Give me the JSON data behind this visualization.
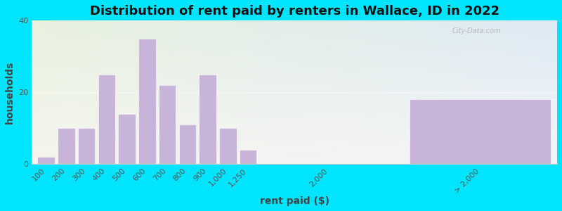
{
  "title": "Distribution of rent paid by renters in Wallace, ID in 2022",
  "xlabel": "rent paid ($)",
  "ylabel": "households",
  "bar_color": "#c8b4d8",
  "background_outer": "#00e5ff",
  "bg_color_topleft": "#e8f2de",
  "bg_color_topright": "#ddeaf5",
  "bg_color_bottom": "#f5f5f5",
  "ylim": [
    0,
    40
  ],
  "yticks": [
    0,
    20,
    40
  ],
  "bars": [
    {
      "label": "100",
      "value": 2
    },
    {
      "label": "200",
      "value": 10
    },
    {
      "label": "300",
      "value": 10
    },
    {
      "label": "400",
      "value": 25
    },
    {
      "label": "500",
      "value": 14
    },
    {
      "label": "600",
      "value": 35
    },
    {
      "label": "700",
      "value": 22
    },
    {
      "label": "800",
      "value": 11
    },
    {
      "label": "900",
      "value": 25
    },
    {
      "label": "1,000",
      "value": 10
    },
    {
      "label": "1,250",
      "value": 4
    },
    {
      "label": "2,000",
      "value": 0
    },
    {
      "label": "> 2,000",
      "value": 18
    }
  ],
  "watermark": "City-Data.com",
  "title_fontsize": 13,
  "axis_label_fontsize": 10,
  "tick_fontsize": 8
}
